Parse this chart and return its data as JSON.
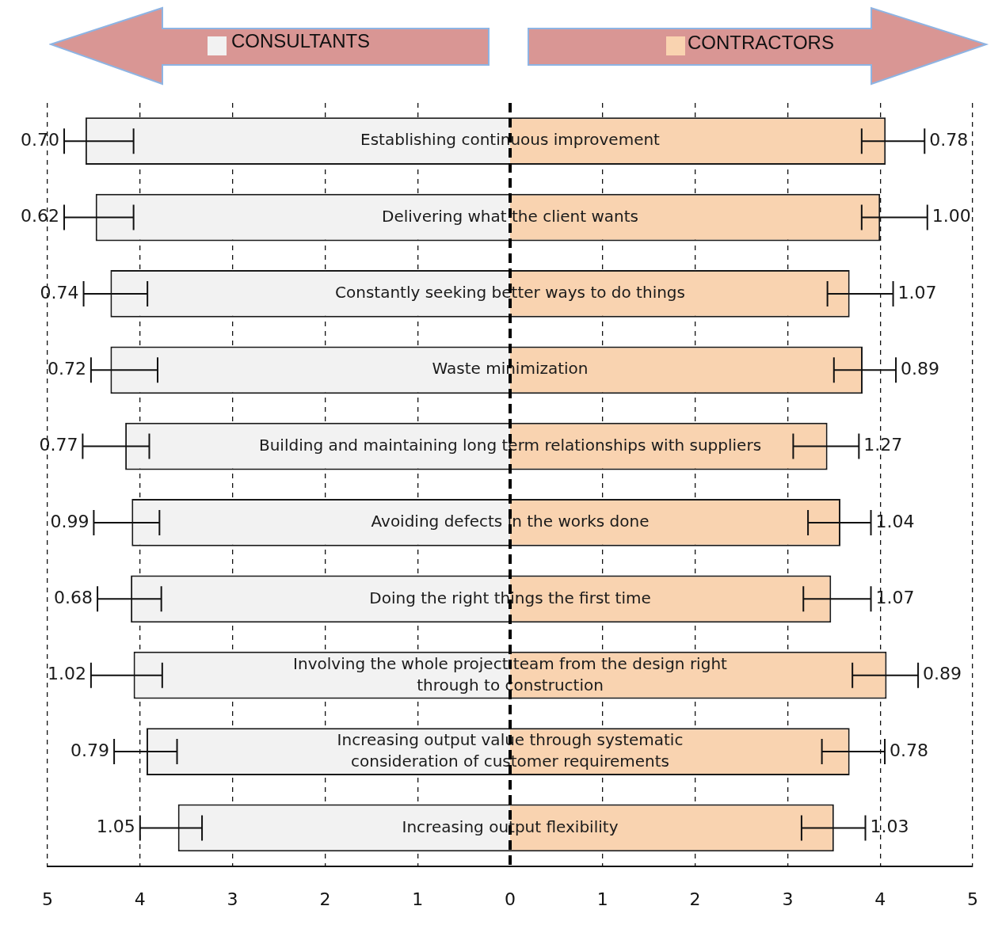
{
  "chart_data": {
    "type": "bar",
    "orientation": "horizontal",
    "categories": [
      "Establishing continuous improvement",
      "Delivering what the client wants",
      "Constantly seeking better ways to do things",
      "Waste minimization",
      "Building and maintaining long term relationships with suppliers",
      "Avoiding defects in the works done",
      "Doing the right things the first time",
      "Involving the whole project team from the design right through to construction",
      "Increasing output value through systematic consideration of customer requirements",
      "Increasing output flexibility"
    ],
    "series": [
      {
        "name": "CONSULTANTS",
        "color": "#f2f2f2",
        "values": [
          -4.59,
          -4.48,
          -4.32,
          -4.32,
          -4.16,
          -4.09,
          -4.1,
          -4.07,
          -3.93,
          -3.59
        ],
        "errors": [
          [
            -4.82,
            -4.07
          ],
          [
            -4.82,
            -4.07
          ],
          [
            -4.61,
            -3.92
          ],
          [
            -4.53,
            -3.81
          ],
          [
            -4.62,
            -3.9
          ],
          [
            -4.5,
            -3.79
          ],
          [
            -4.46,
            -3.77
          ],
          [
            -4.53,
            -3.76
          ],
          [
            -4.28,
            -3.6
          ],
          [
            -4.0,
            -3.33
          ]
        ]
      },
      {
        "name": "CONTRACTORS",
        "color": "#f9d3b0",
        "values": [
          4.06,
          4.0,
          3.67,
          3.81,
          3.43,
          3.57,
          3.47,
          4.07,
          3.67,
          3.5
        ],
        "errors": [
          [
            3.8,
            4.48
          ],
          [
            3.8,
            4.51
          ],
          [
            3.43,
            4.14
          ],
          [
            3.5,
            4.17
          ],
          [
            3.06,
            3.77
          ],
          [
            3.22,
            3.9
          ],
          [
            3.17,
            3.9
          ],
          [
            3.7,
            4.41
          ],
          [
            3.37,
            4.05
          ],
          [
            3.15,
            3.84
          ]
        ]
      }
    ],
    "xlim": [
      -5,
      5
    ],
    "xticks": [
      {
        "value": -5,
        "label": "5"
      },
      {
        "value": -4,
        "label": "4"
      },
      {
        "value": -3,
        "label": "3"
      },
      {
        "value": -2,
        "label": "2"
      },
      {
        "value": -1,
        "label": "1"
      },
      0,
      1,
      2,
      3,
      4,
      5
    ],
    "grid": "x",
    "legend": "top",
    "stacked": true,
    "ref_lines": [
      {
        "axis": "x",
        "value": 0,
        "line_style": "dashed",
        "color": "#000000"
      }
    ],
    "annotations": [
      {
        "text": "0.70",
        "x": -4.82,
        "y": "Establishing continuous improvement"
      },
      {
        "text": "0.62",
        "x": -4.82,
        "y": "Delivering what the client wants"
      },
      {
        "text": "0.74",
        "x": -4.61,
        "y": "Constantly seeking better ways to do things"
      },
      {
        "text": "0.72",
        "x": -4.53,
        "y": "Waste minimization"
      },
      {
        "text": "0.77",
        "x": -4.62,
        "y": "Building and maintaining long term relationships with suppliers"
      },
      {
        "text": "0.99",
        "x": -4.5,
        "y": "Avoiding defects in the works done"
      },
      {
        "text": "0.68",
        "x": -4.46,
        "y": "Doing the right things the first time"
      },
      {
        "text": "1.02",
        "x": -4.53,
        "y": "Involving the whole project team from the design right through to construction"
      },
      {
        "text": "0.79",
        "x": -4.28,
        "y": "Increasing output value through systematic consideration of customer requirements"
      },
      {
        "text": "1.05",
        "x": -4.0,
        "y": "Increasing output flexibility"
      },
      {
        "text": "0.78",
        "x": 4.48,
        "y": "Establishing continuous improvement"
      },
      {
        "text": "1.00",
        "x": 4.51,
        "y": "Delivering what the client wants"
      },
      {
        "text": "1.07",
        "x": 4.14,
        "y": "Constantly seeking better ways to do things"
      },
      {
        "text": "0.89",
        "x": 4.17,
        "y": "Waste minimization"
      },
      {
        "text": "1.27",
        "x": 3.77,
        "y": "Building and maintaining long term relationships with suppliers"
      },
      {
        "text": "1.04",
        "x": 3.9,
        "y": "Avoiding defects in the works done"
      },
      {
        "text": "1.07",
        "x": 3.9,
        "y": "Doing the right things the first time"
      },
      {
        "text": "0.89",
        "x": 4.41,
        "y": "Involving the whole project team from the design right through to construction"
      },
      {
        "text": "0.78",
        "x": 4.05,
        "y": "Increasing output value through systematic consideration of customer requirements"
      },
      {
        "text": "1.03",
        "x": 3.84,
        "y": "Increasing output flexibility"
      }
    ]
  }
}
